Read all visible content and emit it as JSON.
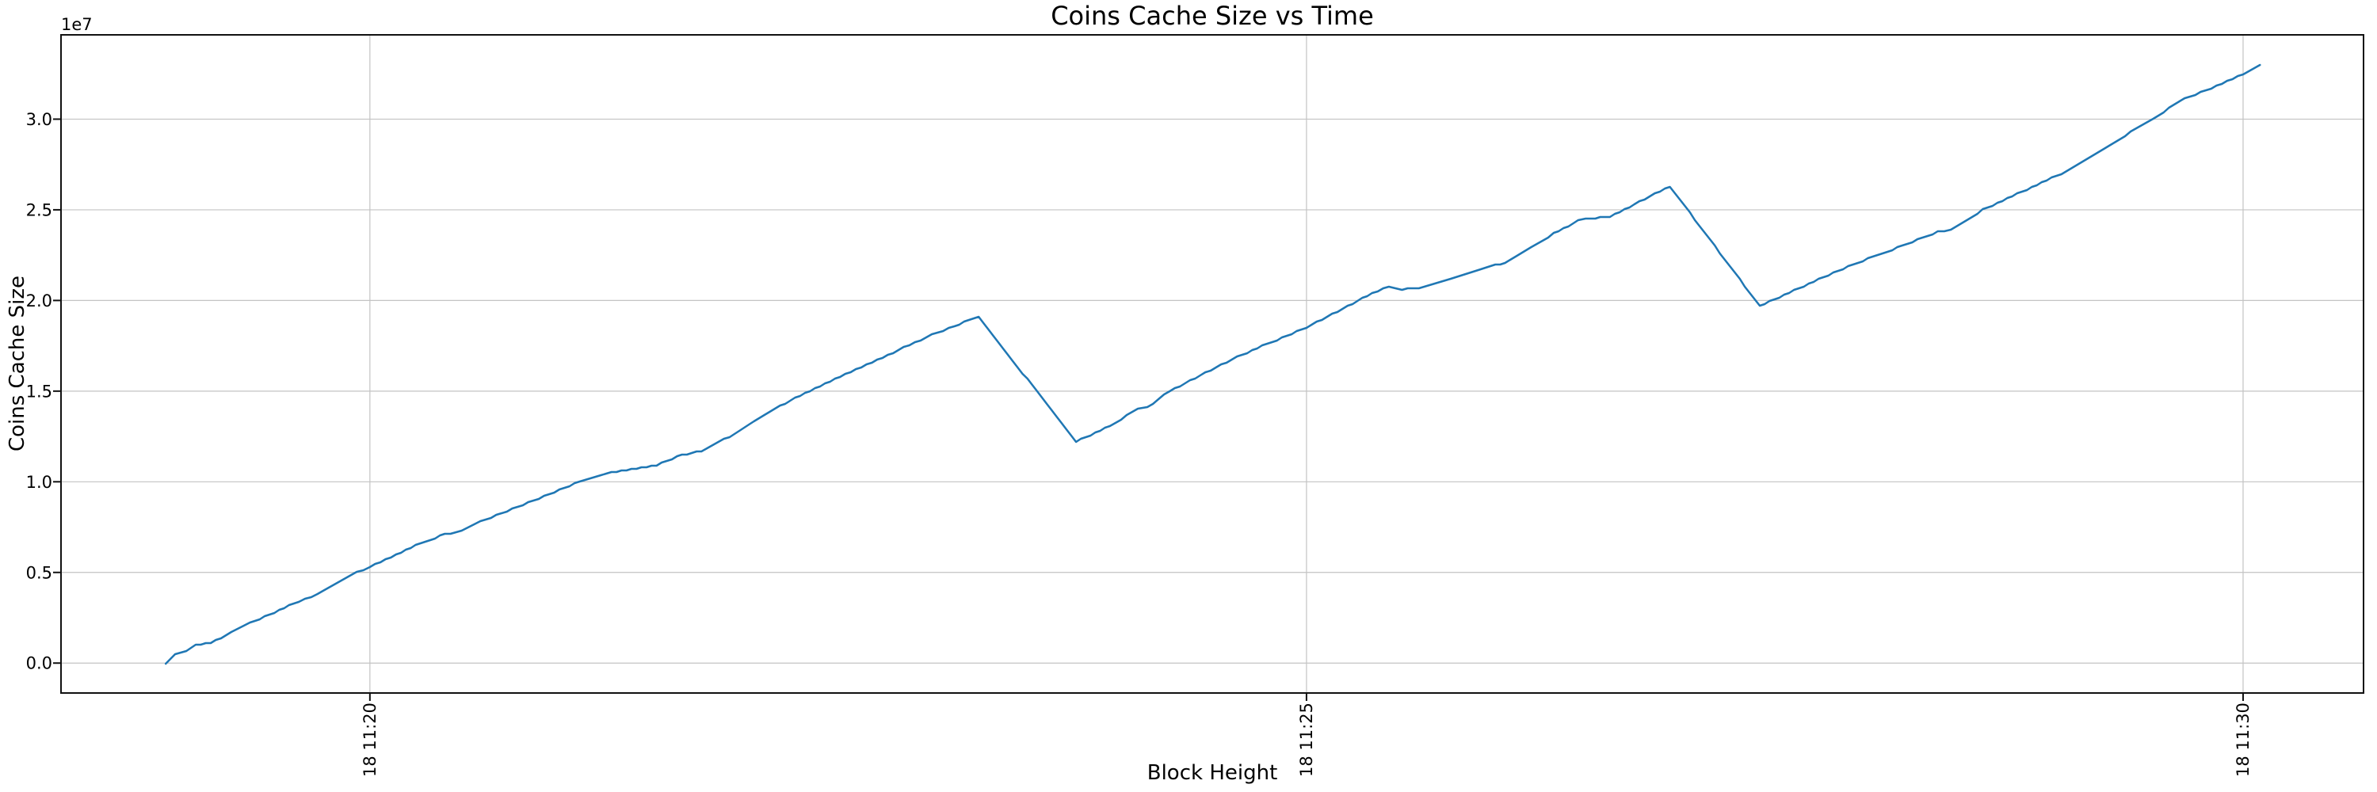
{
  "figure": {
    "title": "Coins Cache Size vs Time"
  },
  "chart_data": {
    "type": "line",
    "title": "Coins Cache Size vs Time",
    "xlabel": "Block Height",
    "ylabel": "Coins Cache Size",
    "y_offset_label": "1e7",
    "y_unit": "1e7",
    "x_unit": "minutes after 11:00 (day 18)",
    "grid": true,
    "legend": "none",
    "xlim": [
      18.351,
      30.643
    ],
    "ylim": [
      -0.165,
      3.465
    ],
    "x_ticks": [
      {
        "minutes": 20,
        "label": "18 11:20"
      },
      {
        "minutes": 25,
        "label": "18 11:25"
      },
      {
        "minutes": 30,
        "label": "18 11:30"
      }
    ],
    "y_ticks": [
      {
        "value": 0.0,
        "label": "0.0"
      },
      {
        "value": 0.5,
        "label": "0.5"
      },
      {
        "value": 1.0,
        "label": "1.0"
      },
      {
        "value": 1.5,
        "label": "1.5"
      },
      {
        "value": 2.0,
        "label": "2.0"
      },
      {
        "value": 2.5,
        "label": "2.5"
      },
      {
        "value": 3.0,
        "label": "3.0"
      }
    ],
    "series": [
      {
        "name": "coins_cache_size",
        "color": "#1f77b4",
        "points": [
          [
            18.91,
            0.0
          ],
          [
            18.96,
            0.05
          ],
          [
            19.02,
            0.07
          ],
          [
            19.07,
            0.1
          ],
          [
            19.15,
            0.11
          ],
          [
            19.26,
            0.17
          ],
          [
            19.36,
            0.22
          ],
          [
            19.49,
            0.28
          ],
          [
            19.62,
            0.34
          ],
          [
            19.72,
            0.38
          ],
          [
            19.81,
            0.43
          ],
          [
            19.93,
            0.5
          ],
          [
            20.0,
            0.53
          ],
          [
            20.14,
            0.6
          ],
          [
            20.27,
            0.66
          ],
          [
            20.4,
            0.71
          ],
          [
            20.49,
            0.73
          ],
          [
            20.59,
            0.78
          ],
          [
            20.76,
            0.85
          ],
          [
            20.93,
            0.92
          ],
          [
            21.12,
            1.0
          ],
          [
            21.29,
            1.05
          ],
          [
            21.45,
            1.08
          ],
          [
            21.53,
            1.09
          ],
          [
            21.64,
            1.14
          ],
          [
            21.77,
            1.17
          ],
          [
            21.92,
            1.25
          ],
          [
            22.05,
            1.33
          ],
          [
            22.19,
            1.42
          ],
          [
            22.35,
            1.5
          ],
          [
            22.51,
            1.58
          ],
          [
            22.68,
            1.66
          ],
          [
            22.85,
            1.74
          ],
          [
            23.0,
            1.81
          ],
          [
            23.12,
            1.86
          ],
          [
            23.25,
            1.91
          ],
          [
            23.77,
            1.22
          ],
          [
            23.95,
            1.31
          ],
          [
            24.1,
            1.4
          ],
          [
            24.15,
            1.41
          ],
          [
            24.27,
            1.5
          ],
          [
            24.46,
            1.6
          ],
          [
            24.63,
            1.69
          ],
          [
            24.79,
            1.76
          ],
          [
            25.0,
            1.85
          ],
          [
            25.22,
            1.97
          ],
          [
            25.35,
            2.04
          ],
          [
            25.44,
            2.08
          ],
          [
            25.51,
            2.06
          ],
          [
            25.6,
            2.07
          ],
          [
            25.77,
            2.12
          ],
          [
            25.93,
            2.17
          ],
          [
            26.06,
            2.21
          ],
          [
            26.2,
            2.29
          ],
          [
            26.32,
            2.37
          ],
          [
            26.45,
            2.44
          ],
          [
            26.49,
            2.45
          ],
          [
            26.62,
            2.46
          ],
          [
            26.75,
            2.53
          ],
          [
            26.86,
            2.59
          ],
          [
            26.94,
            2.63
          ],
          [
            27.42,
            1.97
          ],
          [
            27.55,
            2.03
          ],
          [
            27.76,
            2.13
          ],
          [
            27.97,
            2.22
          ],
          [
            28.18,
            2.3
          ],
          [
            28.37,
            2.38
          ],
          [
            28.44,
            2.39
          ],
          [
            28.61,
            2.5
          ],
          [
            28.82,
            2.6
          ],
          [
            29.03,
            2.7
          ],
          [
            29.2,
            2.8
          ],
          [
            29.37,
            2.91
          ],
          [
            29.52,
            3.0
          ],
          [
            29.66,
            3.1
          ],
          [
            29.83,
            3.17
          ],
          [
            30.0,
            3.25
          ],
          [
            30.09,
            3.3
          ]
        ]
      }
    ],
    "colors": {
      "line": "#1f77b4",
      "grid": "#c3c3c3",
      "spine": "#111111",
      "background": "#ffffff",
      "text": "#000000"
    }
  }
}
